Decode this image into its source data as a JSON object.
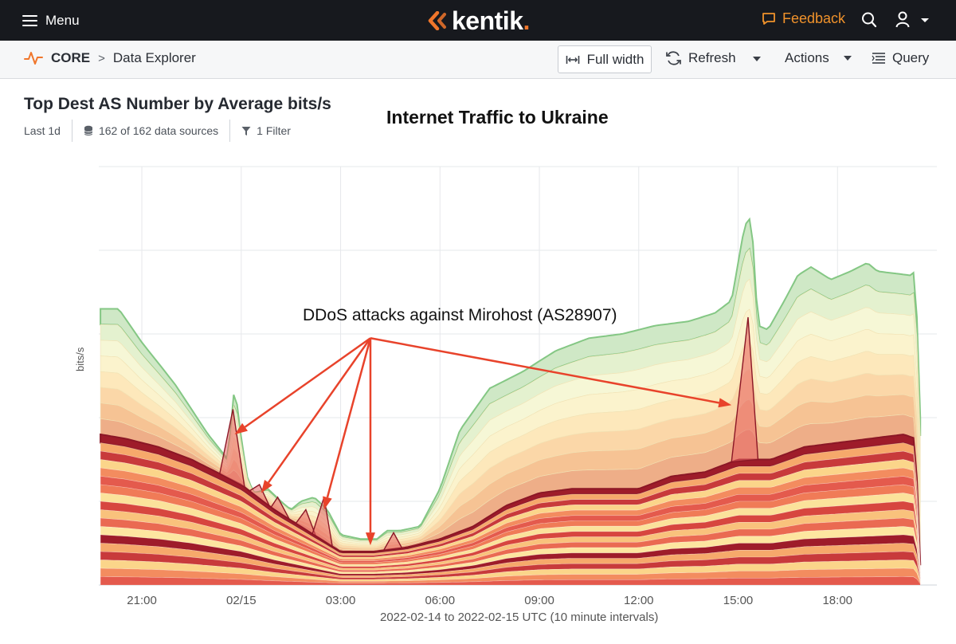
{
  "topbar": {
    "menu_label": "Menu",
    "brand": "kentik",
    "brand_dot": ".",
    "feedback_label": "Feedback",
    "accent": "#f0762b"
  },
  "subbar": {
    "section": "CORE",
    "page": "Data Explorer",
    "full_width_label": "Full width",
    "refresh_label": "Refresh",
    "actions_label": "Actions",
    "query_label": "Query"
  },
  "panel": {
    "title": "Top Dest AS Number by Average bits/s",
    "range": "Last 1d",
    "sources": "162 of 162 data sources",
    "filter": "1 Filter"
  },
  "annotations": {
    "overlay_title": "Internet Traffic to Ukraine",
    "ddos_label": "DDoS attacks against Mirohost (AS28907)"
  },
  "chart_data": {
    "type": "area",
    "ylabel": "bits/s",
    "xlabel": "2022-02-14 to 2022-02-15 UTC (10 minute intervals)",
    "x_ticks": [
      "21:00",
      "02/15",
      "03:00",
      "06:00",
      "09:00",
      "12:00",
      "15:00",
      "18:00"
    ],
    "x_tick_hours": [
      21,
      24,
      27,
      30,
      33,
      36,
      39,
      42
    ],
    "x_range_hours": [
      19.7,
      45.0
    ],
    "y_range": [
      0,
      100
    ],
    "y_tick_values": [
      20,
      40,
      60,
      80,
      100
    ],
    "grid": true,
    "layers": 26,
    "envelope": {
      "hours": [
        19.75,
        20.3,
        21.0,
        22.0,
        23.0,
        23.6,
        23.8,
        24.0,
        24.2,
        24.4,
        24.8,
        25.2,
        25.5,
        25.8,
        26.2,
        26.6,
        27.0,
        27.6,
        28.1,
        28.4,
        28.8,
        29.4,
        30.0,
        30.6,
        31.5,
        32.5,
        33.5,
        34.5,
        35.5,
        36.5,
        37.5,
        38.3,
        38.8,
        39.2,
        39.4,
        39.6,
        39.9,
        40.4,
        40.8,
        41.2,
        41.8,
        42.4,
        42.9,
        43.2,
        44.2,
        44.35,
        44.5
      ],
      "values": [
        66,
        66,
        58,
        48,
        36,
        30,
        48,
        35,
        25,
        22,
        23,
        20,
        18,
        20,
        21,
        18,
        12,
        11,
        11,
        13,
        13,
        14,
        23,
        37,
        47,
        51,
        56,
        59,
        60,
        62,
        63,
        65,
        68,
        86,
        88,
        62,
        61,
        68,
        74,
        76,
        73,
        75,
        77,
        75,
        74,
        75,
        40
      ]
    },
    "core": {
      "hours": [
        19.75,
        20.5,
        21.5,
        22.5,
        23.5,
        24.0,
        25.0,
        26.0,
        27.0,
        28.0,
        29.0,
        30.0,
        31.0,
        32.0,
        33.0,
        34.0,
        35.0,
        36.0,
        37.0,
        38.0,
        39.0,
        40.0,
        41.0,
        42.0,
        43.0,
        44.0,
        44.35,
        44.5
      ],
      "values": [
        36,
        35,
        33,
        30,
        26,
        24,
        18,
        13,
        8,
        8,
        9,
        11,
        14,
        19,
        22,
        23,
        23,
        23,
        26,
        27,
        30,
        30,
        33,
        34,
        35,
        36,
        35,
        5
      ]
    },
    "attack_spikes": [
      {
        "start": 23.35,
        "peak": 23.75,
        "end": 24.1,
        "value": 42
      },
      {
        "start": 24.25,
        "peak": 24.55,
        "end": 24.85,
        "value": 24
      },
      {
        "start": 24.9,
        "peak": 25.1,
        "end": 25.45,
        "value": 21
      },
      {
        "start": 25.65,
        "peak": 25.95,
        "end": 26.25,
        "value": 18
      },
      {
        "start": 26.15,
        "peak": 26.5,
        "end": 26.75,
        "value": 21
      },
      {
        "start": 28.3,
        "peak": 28.6,
        "end": 28.85,
        "value": 12.5
      },
      {
        "start": 38.8,
        "peak": 39.3,
        "end": 39.6,
        "value": 64
      }
    ],
    "arrows": {
      "origin_hours": 27.9,
      "origin_value": 59,
      "targets": [
        {
          "hours": 23.8,
          "value": 36
        },
        {
          "hours": 24.6,
          "value": 22
        },
        {
          "hours": 26.5,
          "value": 18
        },
        {
          "hours": 27.9,
          "value": 9.5
        },
        {
          "hours": 38.8,
          "value": 43
        }
      ],
      "color": "#e8432b"
    }
  }
}
